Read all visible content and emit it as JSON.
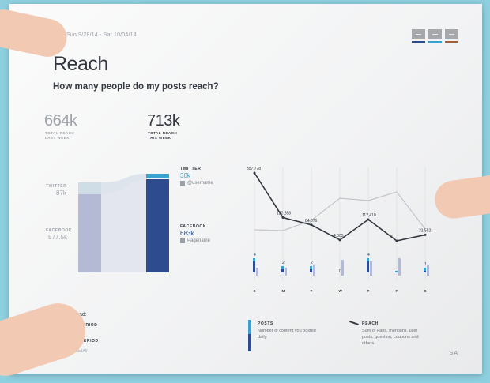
{
  "header": {
    "date_range": "me - Sun 9/28/14 - Sat 10/04/14",
    "toggles": [
      {
        "name": "posts-toggle",
        "bar_color": "#2d4b8e"
      },
      {
        "name": "reach-toggle",
        "bar_color": "#39a3cf"
      },
      {
        "name": "engagement-toggle",
        "bar_color": "#a0603a"
      }
    ]
  },
  "title": "Reach",
  "question": "How many people do my posts reach?",
  "kpis": {
    "last_week_value": "664k",
    "last_week_label": "TOTAL REACH LAST WEEK",
    "this_week_value": "713k",
    "this_week_label": "TOTAL REACH THIS WEEK"
  },
  "breakdown": {
    "twitter_label": "TWITTER",
    "twitter_last": "87k",
    "twitter_this": "30k",
    "twitter_handle": "@username",
    "facebook_label": "FACEBOOK",
    "facebook_last": "577.5k",
    "facebook_this": "683k",
    "facebook_handle": "Pagename"
  },
  "chart_data": {
    "type": "line",
    "categories": [
      "S",
      "M",
      "T",
      "W",
      "T",
      "F",
      "S"
    ],
    "series": [
      {
        "values": [
          357778,
          122558,
          84076,
          4805,
          112410,
          4,
          31552
        ],
        "labels": [
          "357,778",
          "122,558",
          "84,076",
          "4,805",
          "112,410",
          "4",
          "31,552"
        ]
      },
      {
        "values": [
          0,
          0,
          2,
          5,
          4,
          6,
          2
        ]
      }
    ],
    "posts": {
      "labels": [
        "4",
        "2",
        "2",
        "0",
        "4",
        "",
        "1"
      ]
    }
  },
  "legend": {
    "how_to_read": "How to read:",
    "current_period": "CURRENT PERIOD",
    "previous_period": "PERIOD",
    "credit": "by SocialAll",
    "posts_label": "POSTS",
    "posts_desc": "Number of content you posted daily.",
    "reach_label": "REACH",
    "reach_desc": "Sum of Fans, mentions, user posts, question, coupons and others."
  },
  "signature": "SA",
  "colors": {
    "navy": "#2d4b8e",
    "cyan": "#39a3cf",
    "lavender": "#b4b9d4"
  }
}
